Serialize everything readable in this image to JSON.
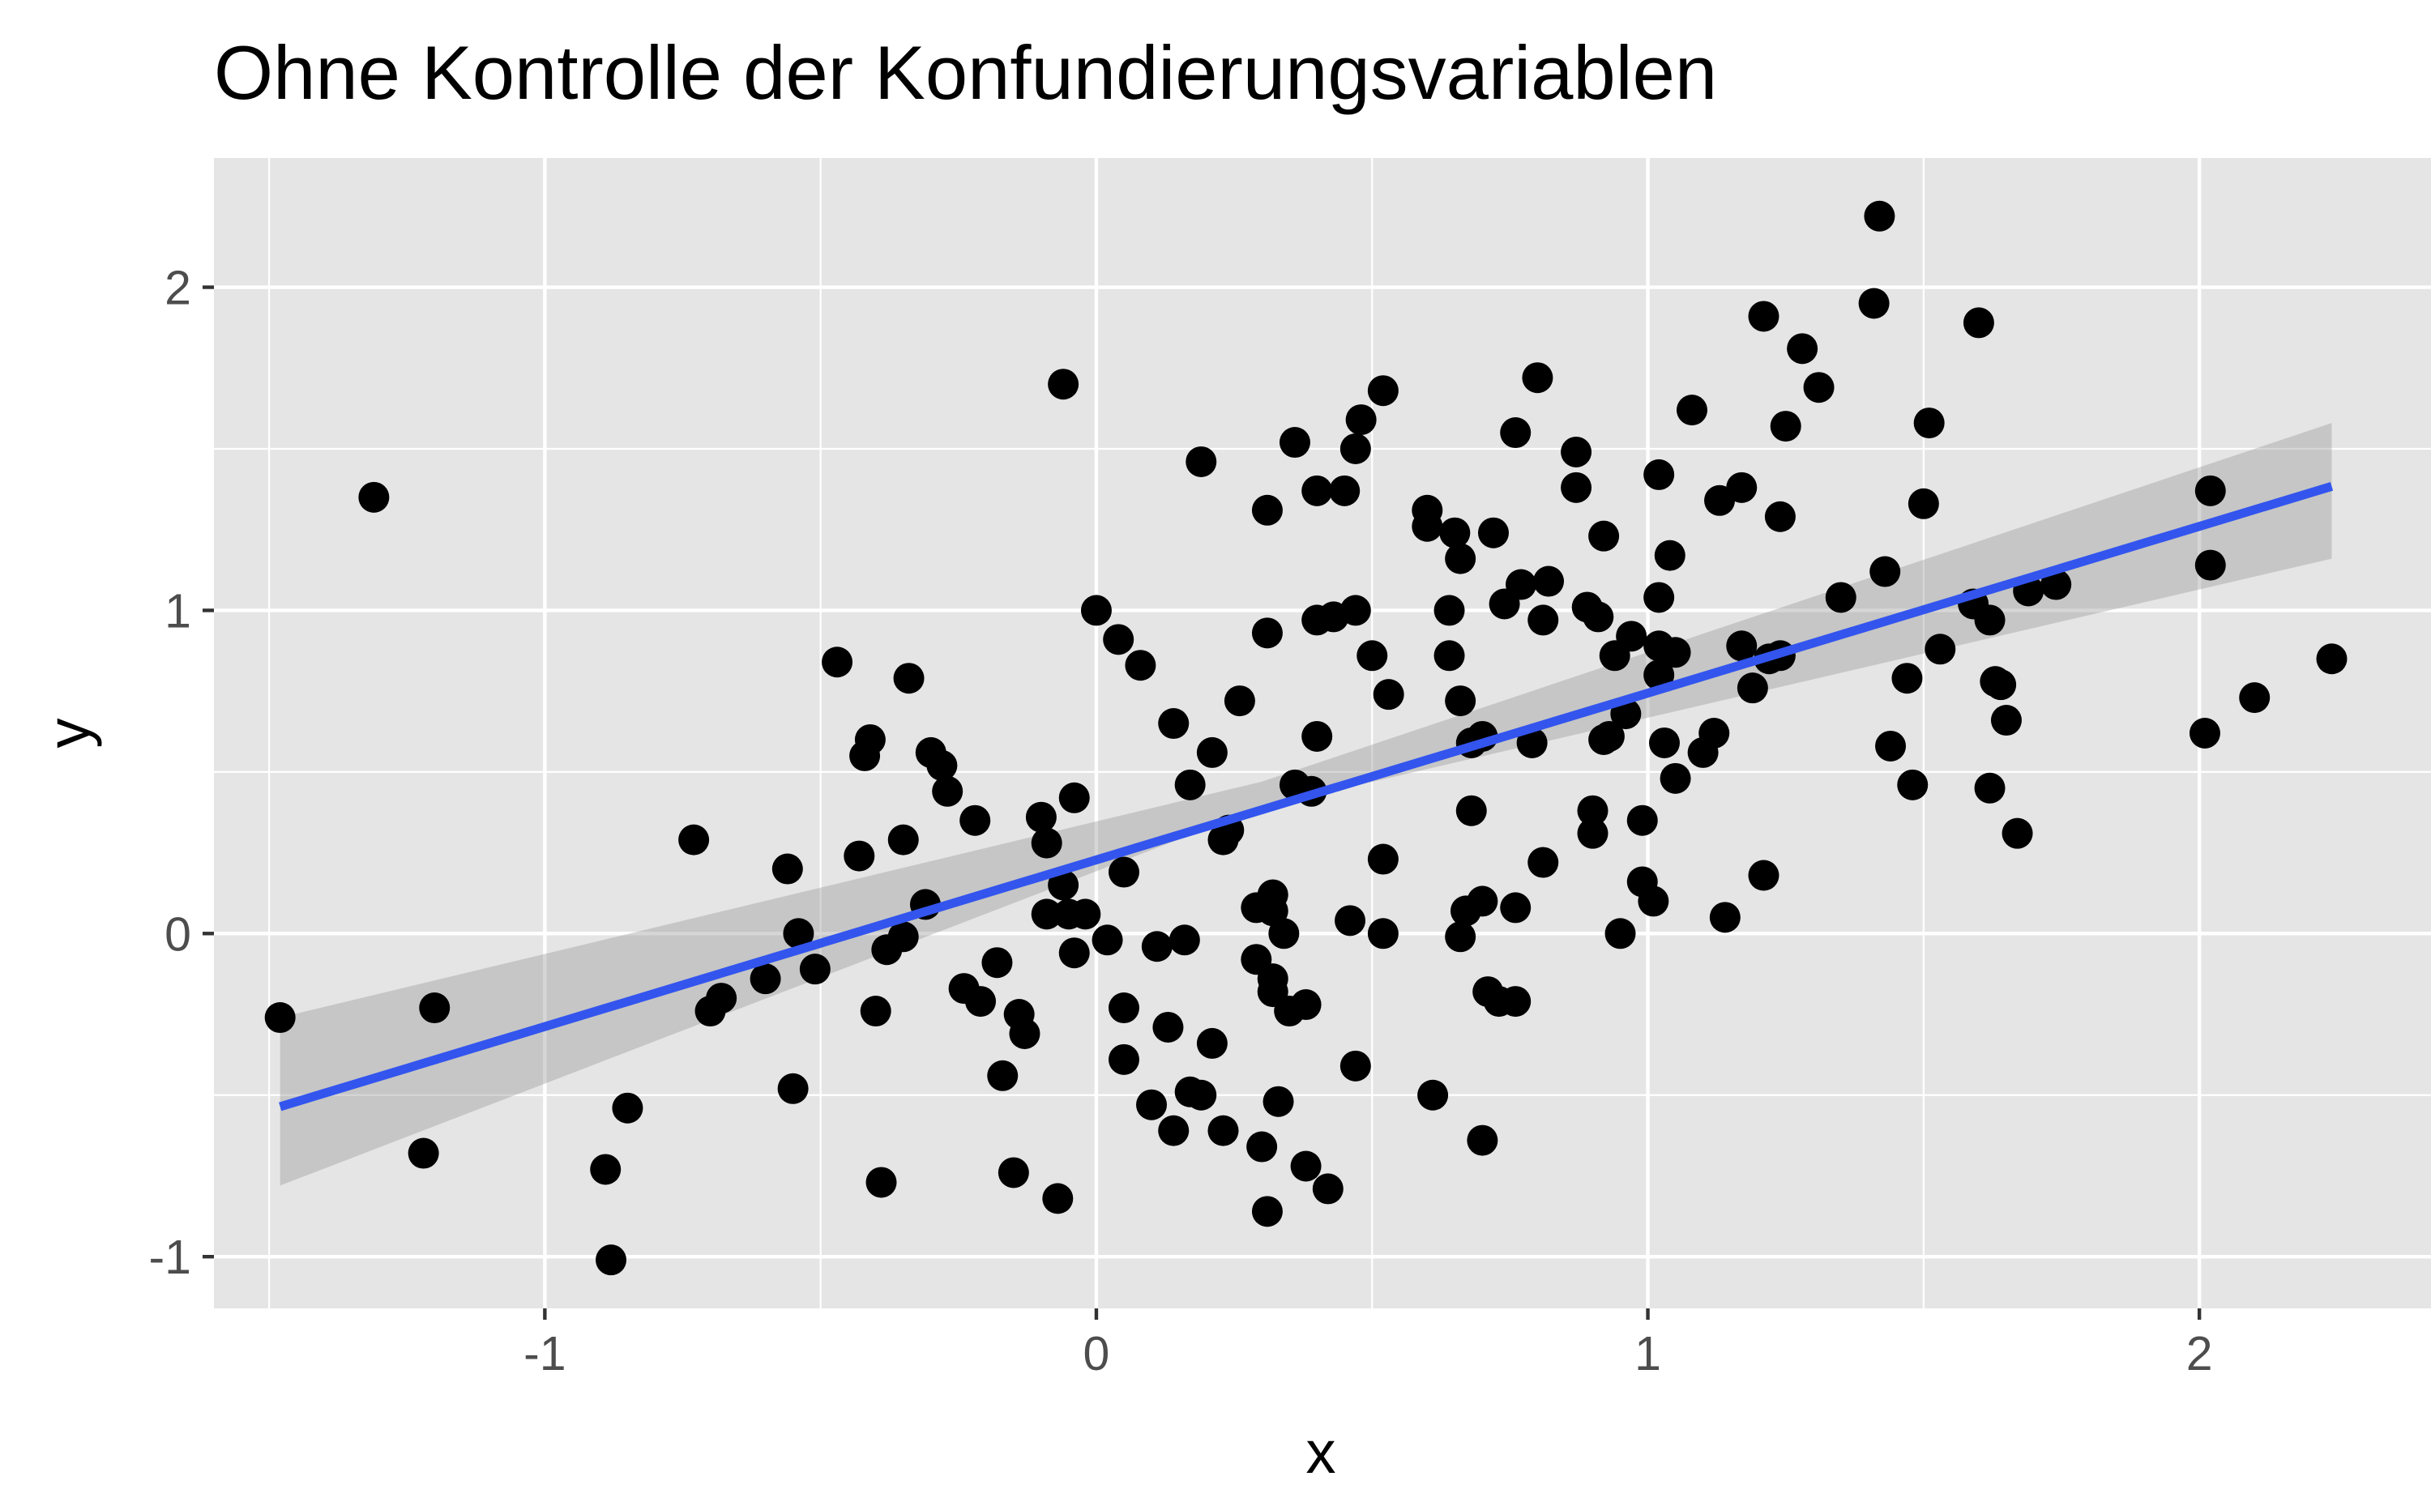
{
  "chart_data": {
    "type": "scatter",
    "title": "Ohne Kontrolle der Konfundierungsvariablen",
    "xlabel": "x",
    "ylabel": "y",
    "xlim": [
      -1.6,
      2.42
    ],
    "ylim": [
      -1.16,
      2.4
    ],
    "x_ticks": [
      -1,
      0,
      1,
      2
    ],
    "y_ticks": [
      -1,
      0,
      1,
      2
    ],
    "x_tick_labels": [
      "-1",
      "0",
      "1",
      "2"
    ],
    "y_tick_labels": [
      "-1",
      "0",
      "1",
      "2"
    ],
    "grid": true,
    "legend": "none",
    "colors": {
      "panel": "#e5e5e5",
      "grid": "#ffffff",
      "points": "#000000",
      "fit_line": "#3355ee",
      "confidence_band": "#999999"
    },
    "fit": {
      "method": "linear regression",
      "x_range": [
        -1.48,
        2.24
      ],
      "intercept": 0.228,
      "slope": 0.516,
      "ci_lower": [
        [
          -1.48,
          -0.78
        ],
        [
          0.3,
          0.39
        ],
        [
          2.24,
          1.16
        ]
      ],
      "ci_upper": [
        [
          -1.48,
          -0.26
        ],
        [
          0.3,
          0.47
        ],
        [
          2.24,
          1.58
        ]
      ]
    },
    "points": [
      [
        -1.48,
        -0.26
      ],
      [
        -1.31,
        1.35
      ],
      [
        -1.22,
        -0.68
      ],
      [
        -1.2,
        -0.23
      ],
      [
        -0.89,
        -0.73
      ],
      [
        -0.88,
        -1.01
      ],
      [
        -0.85,
        -0.54
      ],
      [
        -0.73,
        0.29
      ],
      [
        -0.7,
        -0.24
      ],
      [
        -0.68,
        -0.2
      ],
      [
        -0.6,
        -0.14
      ],
      [
        -0.56,
        0.2
      ],
      [
        -0.55,
        -0.48
      ],
      [
        -0.54,
        0.0
      ],
      [
        -0.51,
        -0.11
      ],
      [
        -0.47,
        0.84
      ],
      [
        -0.43,
        0.24
      ],
      [
        -0.42,
        0.55
      ],
      [
        -0.41,
        0.6
      ],
      [
        -0.4,
        -0.24
      ],
      [
        -0.39,
        -0.77
      ],
      [
        -0.38,
        -0.05
      ],
      [
        -0.35,
        -0.01
      ],
      [
        -0.35,
        0.29
      ],
      [
        -0.34,
        0.79
      ],
      [
        -0.31,
        0.09
      ],
      [
        -0.3,
        0.56
      ],
      [
        -0.28,
        0.52
      ],
      [
        -0.27,
        0.44
      ],
      [
        -0.24,
        -0.17
      ],
      [
        -0.22,
        0.35
      ],
      [
        -0.21,
        -0.21
      ],
      [
        -0.18,
        -0.09
      ],
      [
        -0.17,
        -0.44
      ],
      [
        -0.15,
        -0.74
      ],
      [
        -0.14,
        -0.25
      ],
      [
        -0.13,
        -0.31
      ],
      [
        -0.1,
        0.36
      ],
      [
        -0.09,
        0.28
      ],
      [
        -0.09,
        0.06
      ],
      [
        -0.07,
        -0.82
      ],
      [
        -0.06,
        1.7
      ],
      [
        -0.06,
        0.15
      ],
      [
        -0.05,
        0.06
      ],
      [
        -0.04,
        0.42
      ],
      [
        -0.04,
        -0.06
      ],
      [
        -0.02,
        0.06
      ],
      [
        0.0,
        1.0
      ],
      [
        0.02,
        -0.02
      ],
      [
        0.04,
        0.91
      ],
      [
        0.05,
        0.19
      ],
      [
        0.05,
        -0.23
      ],
      [
        0.05,
        -0.39
      ],
      [
        0.08,
        0.83
      ],
      [
        0.1,
        -0.53
      ],
      [
        0.11,
        -0.04
      ],
      [
        0.13,
        -0.29
      ],
      [
        0.14,
        -0.61
      ],
      [
        0.14,
        0.65
      ],
      [
        0.16,
        -0.02
      ],
      [
        0.17,
        -0.49
      ],
      [
        0.17,
        0.46
      ],
      [
        0.19,
        1.46
      ],
      [
        0.19,
        -0.5
      ],
      [
        0.21,
        -0.34
      ],
      [
        0.21,
        0.56
      ],
      [
        0.23,
        0.29
      ],
      [
        0.23,
        -0.61
      ],
      [
        0.24,
        0.32
      ],
      [
        0.26,
        0.72
      ],
      [
        0.29,
        -0.08
      ],
      [
        0.29,
        0.08
      ],
      [
        0.3,
        -0.66
      ],
      [
        0.31,
        1.31
      ],
      [
        0.31,
        0.93
      ],
      [
        0.31,
        -0.86
      ],
      [
        0.32,
        -0.14
      ],
      [
        0.32,
        -0.18
      ],
      [
        0.32,
        0.12
      ],
      [
        0.32,
        0.07
      ],
      [
        0.33,
        -0.52
      ],
      [
        0.34,
        0.0
      ],
      [
        0.35,
        -0.24
      ],
      [
        0.36,
        1.52
      ],
      [
        0.36,
        0.46
      ],
      [
        0.38,
        -0.22
      ],
      [
        0.38,
        -0.72
      ],
      [
        0.39,
        0.44
      ],
      [
        0.4,
        0.97
      ],
      [
        0.4,
        1.37
      ],
      [
        0.4,
        0.61
      ],
      [
        0.42,
        -0.79
      ],
      [
        0.43,
        0.98
      ],
      [
        0.45,
        1.37
      ],
      [
        0.46,
        0.04
      ],
      [
        0.47,
        1.0
      ],
      [
        0.47,
        -0.41
      ],
      [
        0.47,
        1.5
      ],
      [
        0.48,
        1.59
      ],
      [
        0.5,
        0.86
      ],
      [
        0.52,
        1.68
      ],
      [
        0.52,
        0.23
      ],
      [
        0.52,
        0.0
      ],
      [
        0.53,
        0.74
      ],
      [
        0.6,
        1.31
      ],
      [
        0.6,
        1.26
      ],
      [
        0.61,
        -0.5
      ],
      [
        0.64,
        0.86
      ],
      [
        0.64,
        1.0
      ],
      [
        0.65,
        1.24
      ],
      [
        0.66,
        0.72
      ],
      [
        0.66,
        -0.01
      ],
      [
        0.66,
        1.16
      ],
      [
        0.67,
        0.07
      ],
      [
        0.68,
        0.59
      ],
      [
        0.68,
        0.38
      ],
      [
        0.7,
        0.61
      ],
      [
        0.7,
        -0.64
      ],
      [
        0.7,
        0.1
      ],
      [
        0.71,
        -0.18
      ],
      [
        0.72,
        1.24
      ],
      [
        0.73,
        -0.21
      ],
      [
        0.74,
        1.02
      ],
      [
        0.76,
        1.55
      ],
      [
        0.76,
        0.08
      ],
      [
        0.76,
        -0.21
      ],
      [
        0.77,
        1.08
      ],
      [
        0.79,
        0.59
      ],
      [
        0.8,
        1.72
      ],
      [
        0.81,
        0.97
      ],
      [
        0.81,
        0.22
      ],
      [
        0.82,
        1.09
      ],
      [
        0.87,
        1.49
      ],
      [
        0.87,
        1.38
      ],
      [
        0.89,
        1.01
      ],
      [
        0.9,
        0.38
      ],
      [
        0.9,
        0.31
      ],
      [
        0.91,
        0.98
      ],
      [
        0.92,
        1.23
      ],
      [
        0.92,
        0.6
      ],
      [
        0.93,
        0.61
      ],
      [
        0.94,
        0.86
      ],
      [
        0.95,
        0.0
      ],
      [
        0.96,
        0.68
      ],
      [
        0.97,
        0.92
      ],
      [
        0.99,
        0.16
      ],
      [
        0.99,
        0.35
      ],
      [
        1.01,
        0.1
      ],
      [
        1.02,
        0.8
      ],
      [
        1.02,
        1.42
      ],
      [
        1.02,
        1.04
      ],
      [
        1.02,
        0.89
      ],
      [
        1.03,
        0.59
      ],
      [
        1.04,
        1.17
      ],
      [
        1.05,
        0.87
      ],
      [
        1.05,
        0.48
      ],
      [
        1.08,
        1.62
      ],
      [
        1.1,
        0.56
      ],
      [
        1.12,
        0.62
      ],
      [
        1.13,
        1.34
      ],
      [
        1.14,
        0.05
      ],
      [
        1.17,
        1.38
      ],
      [
        1.17,
        0.89
      ],
      [
        1.19,
        0.76
      ],
      [
        1.21,
        1.91
      ],
      [
        1.21,
        0.18
      ],
      [
        1.22,
        0.85
      ],
      [
        1.24,
        0.86
      ],
      [
        1.24,
        1.29
      ],
      [
        1.25,
        1.57
      ],
      [
        1.28,
        1.81
      ],
      [
        1.31,
        1.69
      ],
      [
        1.35,
        1.04
      ],
      [
        1.41,
        1.95
      ],
      [
        1.42,
        2.22
      ],
      [
        1.43,
        1.12
      ],
      [
        1.44,
        0.58
      ],
      [
        1.47,
        0.79
      ],
      [
        1.48,
        0.46
      ],
      [
        1.5,
        1.33
      ],
      [
        1.51,
        1.58
      ],
      [
        1.53,
        0.88
      ],
      [
        1.59,
        1.02
      ],
      [
        1.6,
        1.89
      ],
      [
        1.62,
        0.45
      ],
      [
        1.62,
        0.97
      ],
      [
        1.63,
        0.78
      ],
      [
        1.64,
        0.77
      ],
      [
        1.65,
        0.66
      ],
      [
        1.67,
        0.31
      ],
      [
        1.69,
        1.06
      ],
      [
        1.74,
        1.08
      ],
      [
        2.01,
        0.62
      ],
      [
        2.02,
        1.14
      ],
      [
        2.02,
        1.37
      ],
      [
        2.1,
        0.73
      ],
      [
        2.24,
        0.85
      ]
    ]
  }
}
